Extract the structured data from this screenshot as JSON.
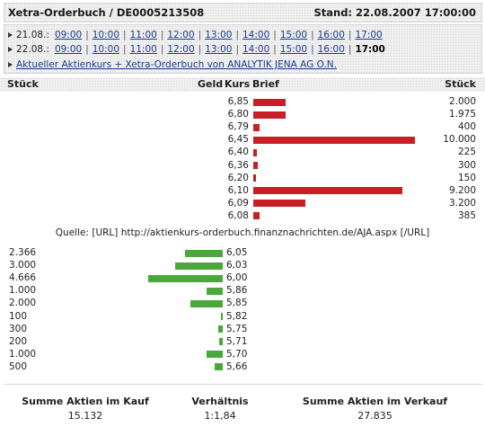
{
  "title": {
    "left": "Xetra-Orderbuch / DE0005213508",
    "right": "Stand: 22.08.2007 17:00:00"
  },
  "nav": {
    "rows": [
      {
        "date": "21.08.:",
        "times": [
          "09:00",
          "10:00",
          "11:00",
          "12:00",
          "13:00",
          "14:00",
          "15:00",
          "16:00",
          "17:00"
        ],
        "current": ""
      },
      {
        "date": "22.08.:",
        "times": [
          "09:00",
          "10:00",
          "11:00",
          "12:00",
          "13:00",
          "14:00",
          "15:00",
          "16:00"
        ],
        "current": "17:00"
      }
    ],
    "link": "Aktueller Aktienkurs + Xetra-Orderbuch von ANALYTIK JENA AG O.N."
  },
  "headers": {
    "stueck_left": "Stück",
    "geld": "Geld",
    "kurs": "Kurs",
    "brief": "Brief",
    "stueck_right": "Stück"
  },
  "chart_data": {
    "type": "bar",
    "ask": {
      "name": "Brief",
      "prices": [
        "6,85",
        "6,80",
        "6,79",
        "6,45",
        "6,40",
        "6,36",
        "6,20",
        "6,10",
        "6,09",
        "6,08"
      ],
      "volumes": [
        "2.000",
        "1.975",
        "400",
        "10.000",
        "225",
        "300",
        "150",
        "9.200",
        "3.200",
        "385"
      ],
      "values": [
        2000,
        1975,
        400,
        10000,
        225,
        300,
        150,
        9200,
        3200,
        385
      ]
    },
    "bid": {
      "name": "Geld",
      "prices": [
        "6,05",
        "6,03",
        "6,00",
        "5,86",
        "5,85",
        "5,82",
        "5,75",
        "5,71",
        "5,70",
        "5,66"
      ],
      "volumes": [
        "2.366",
        "3.000",
        "4.666",
        "1.000",
        "2.000",
        "100",
        "300",
        "200",
        "1.000",
        "500"
      ],
      "values": [
        2366,
        3000,
        4666,
        1000,
        2000,
        100,
        300,
        200,
        1000,
        500
      ]
    }
  },
  "source": "Quelle: [URL] http://aktienkurs-orderbuch.finanznachrichten.de/AJA.aspx [/URL]",
  "summary": {
    "kauf_label": "Summe Aktien im Kauf",
    "kauf_value": "15.132",
    "ratio_label": "Verhältnis",
    "ratio_value": "1:1,84",
    "verkauf_label": "Summe Aktien im Verkauf",
    "verkauf_value": "27.835"
  },
  "colors": {
    "ask_bar": "#c62026",
    "bid_bar": "#4aa83b",
    "link": "#1a3a8a"
  }
}
